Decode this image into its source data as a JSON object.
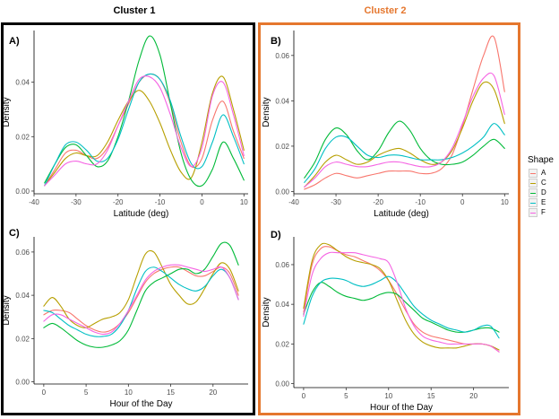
{
  "clusters": [
    {
      "title": "Cluster 1",
      "color": "#000000"
    },
    {
      "title": "Cluster 2",
      "color": "#e5772e"
    }
  ],
  "legend": {
    "title": "Shape",
    "items": [
      {
        "label": "A",
        "color": "#f8766d"
      },
      {
        "label": "C",
        "color": "#b79f00"
      },
      {
        "label": "D",
        "color": "#00ba38"
      },
      {
        "label": "E",
        "color": "#00bfc4"
      },
      {
        "label": "F",
        "color": "#f564e3"
      }
    ]
  },
  "chart_data": [
    {
      "panel": "A)",
      "type": "line",
      "xlabel": "Latitude (deg)",
      "ylabel": "Density",
      "xlim": [
        -40,
        11
      ],
      "ylim": [
        -0.001,
        0.059
      ],
      "xticks": [
        -40,
        -30,
        -20,
        -10,
        0,
        10
      ],
      "yticks": [
        0.0,
        0.02,
        0.04
      ],
      "ytick_labels": [
        "0.00",
        "0.02",
        "0.04"
      ],
      "x": [
        -37.5,
        -35,
        -32.5,
        -30,
        -27.5,
        -25,
        -22.5,
        -20,
        -17.5,
        -15,
        -12.5,
        -10,
        -7.5,
        -5,
        -2.5,
        0,
        2.5,
        5,
        7.5,
        10
      ],
      "series": [
        {
          "name": "A",
          "values": [
            0.002,
            0.008,
            0.014,
            0.015,
            0.013,
            0.012,
            0.016,
            0.024,
            0.032,
            0.04,
            0.043,
            0.041,
            0.032,
            0.018,
            0.009,
            0.012,
            0.026,
            0.033,
            0.022,
            0.012
          ]
        },
        {
          "name": "C",
          "values": [
            0.002,
            0.007,
            0.012,
            0.014,
            0.013,
            0.013,
            0.018,
            0.026,
            0.033,
            0.037,
            0.033,
            0.025,
            0.015,
            0.007,
            0.005,
            0.018,
            0.036,
            0.042,
            0.03,
            0.015
          ]
        },
        {
          "name": "D",
          "values": [
            0.003,
            0.01,
            0.016,
            0.017,
            0.013,
            0.009,
            0.011,
            0.02,
            0.033,
            0.048,
            0.057,
            0.05,
            0.032,
            0.014,
            0.004,
            0.002,
            0.008,
            0.018,
            0.012,
            0.004
          ]
        },
        {
          "name": "E",
          "values": [
            0.002,
            0.01,
            0.017,
            0.018,
            0.015,
            0.011,
            0.012,
            0.019,
            0.03,
            0.04,
            0.043,
            0.041,
            0.033,
            0.02,
            0.01,
            0.009,
            0.018,
            0.028,
            0.02,
            0.01
          ]
        },
        {
          "name": "F",
          "values": [
            0.002,
            0.006,
            0.01,
            0.011,
            0.01,
            0.01,
            0.015,
            0.024,
            0.033,
            0.041,
            0.042,
            0.038,
            0.028,
            0.016,
            0.009,
            0.016,
            0.035,
            0.04,
            0.028,
            0.013
          ]
        }
      ]
    },
    {
      "panel": "B)",
      "type": "line",
      "xlabel": "Latitude (deg)",
      "ylabel": "Density",
      "xlim": [
        -40,
        11
      ],
      "ylim": [
        -0.001,
        0.071
      ],
      "xticks": [
        -40,
        -30,
        -20,
        -10,
        0,
        10
      ],
      "yticks": [
        0.0,
        0.02,
        0.04,
        0.06
      ],
      "ytick_labels": [
        "0.00",
        "0.02",
        "0.04",
        "0.06"
      ],
      "x": [
        -37.5,
        -35,
        -32.5,
        -30,
        -27.5,
        -25,
        -22.5,
        -20,
        -17.5,
        -15,
        -12.5,
        -10,
        -7.5,
        -5,
        -2.5,
        0,
        2.5,
        5,
        7.5,
        10
      ],
      "series": [
        {
          "name": "A",
          "values": [
            0.001,
            0.003,
            0.006,
            0.008,
            0.007,
            0.006,
            0.007,
            0.008,
            0.009,
            0.009,
            0.009,
            0.008,
            0.008,
            0.01,
            0.016,
            0.029,
            0.045,
            0.06,
            0.068,
            0.044
          ]
        },
        {
          "name": "C",
          "values": [
            0.002,
            0.007,
            0.013,
            0.016,
            0.014,
            0.012,
            0.013,
            0.016,
            0.018,
            0.019,
            0.017,
            0.014,
            0.012,
            0.013,
            0.018,
            0.028,
            0.04,
            0.048,
            0.045,
            0.03
          ]
        },
        {
          "name": "D",
          "values": [
            0.006,
            0.013,
            0.023,
            0.028,
            0.025,
            0.018,
            0.014,
            0.018,
            0.026,
            0.031,
            0.027,
            0.019,
            0.014,
            0.012,
            0.012,
            0.013,
            0.016,
            0.02,
            0.023,
            0.019
          ]
        },
        {
          "name": "E",
          "values": [
            0.004,
            0.01,
            0.019,
            0.024,
            0.024,
            0.02,
            0.016,
            0.015,
            0.016,
            0.016,
            0.015,
            0.014,
            0.014,
            0.014,
            0.015,
            0.017,
            0.02,
            0.024,
            0.03,
            0.025
          ]
        },
        {
          "name": "F",
          "values": [
            0.002,
            0.006,
            0.011,
            0.013,
            0.012,
            0.011,
            0.011,
            0.012,
            0.013,
            0.013,
            0.012,
            0.011,
            0.011,
            0.013,
            0.019,
            0.03,
            0.042,
            0.05,
            0.051,
            0.034
          ]
        }
      ]
    },
    {
      "panel": "C)",
      "type": "line",
      "xlabel": "Hour of the Day",
      "ylabel": "Density",
      "xlim": [
        -1.15,
        24.15
      ],
      "ylim": [
        -0.001,
        0.067
      ],
      "xticks": [
        0,
        5,
        10,
        15,
        20
      ],
      "yticks": [
        0.0,
        0.02,
        0.04,
        0.06
      ],
      "ytick_labels": [
        "0.00",
        "0.02",
        "0.04",
        "0.06"
      ],
      "x": [
        0,
        1,
        2,
        3,
        4,
        5,
        6,
        7,
        8,
        9,
        10,
        11,
        12,
        13,
        14,
        15,
        16,
        17,
        18,
        19,
        20,
        21,
        22,
        23
      ],
      "series": [
        {
          "name": "A",
          "values": [
            0.031,
            0.033,
            0.033,
            0.032,
            0.029,
            0.026,
            0.024,
            0.023,
            0.024,
            0.027,
            0.032,
            0.039,
            0.046,
            0.05,
            0.052,
            0.053,
            0.053,
            0.051,
            0.049,
            0.049,
            0.051,
            0.053,
            0.05,
            0.04
          ]
        },
        {
          "name": "C",
          "values": [
            0.035,
            0.039,
            0.035,
            0.029,
            0.026,
            0.025,
            0.027,
            0.029,
            0.03,
            0.032,
            0.038,
            0.049,
            0.059,
            0.06,
            0.053,
            0.045,
            0.04,
            0.036,
            0.037,
            0.043,
            0.05,
            0.055,
            0.052,
            0.042
          ]
        },
        {
          "name": "D",
          "values": [
            0.025,
            0.027,
            0.025,
            0.022,
            0.019,
            0.017,
            0.016,
            0.016,
            0.017,
            0.019,
            0.024,
            0.033,
            0.042,
            0.046,
            0.048,
            0.05,
            0.052,
            0.052,
            0.05,
            0.052,
            0.058,
            0.064,
            0.063,
            0.054
          ]
        },
        {
          "name": "E",
          "values": [
            0.033,
            0.032,
            0.029,
            0.026,
            0.024,
            0.022,
            0.021,
            0.021,
            0.022,
            0.026,
            0.033,
            0.043,
            0.051,
            0.053,
            0.051,
            0.048,
            0.045,
            0.043,
            0.042,
            0.044,
            0.049,
            0.052,
            0.048,
            0.038
          ]
        },
        {
          "name": "F",
          "values": [
            0.028,
            0.031,
            0.031,
            0.029,
            0.027,
            0.025,
            0.023,
            0.022,
            0.023,
            0.027,
            0.033,
            0.04,
            0.047,
            0.051,
            0.053,
            0.054,
            0.054,
            0.053,
            0.052,
            0.051,
            0.052,
            0.053,
            0.048,
            0.038
          ]
        }
      ]
    },
    {
      "panel": "D)",
      "type": "line",
      "xlabel": "Hour of the Day",
      "ylabel": "Density",
      "xlim": [
        -1.15,
        24.15
      ],
      "ylim": [
        -0.002,
        0.074
      ],
      "xticks": [
        0,
        5,
        10,
        15,
        20
      ],
      "yticks": [
        0.0,
        0.02,
        0.04,
        0.06
      ],
      "ytick_labels": [
        "0.00",
        "0.02",
        "0.04",
        "0.06"
      ],
      "x": [
        0,
        1,
        2,
        3,
        4,
        5,
        6,
        7,
        8,
        9,
        10,
        11,
        12,
        13,
        14,
        15,
        16,
        17,
        18,
        19,
        20,
        21,
        22,
        23
      ],
      "series": [
        {
          "name": "A",
          "values": [
            0.036,
            0.06,
            0.068,
            0.069,
            0.067,
            0.065,
            0.064,
            0.062,
            0.06,
            0.057,
            0.052,
            0.045,
            0.037,
            0.03,
            0.026,
            0.024,
            0.023,
            0.022,
            0.021,
            0.02,
            0.02,
            0.02,
            0.019,
            0.016
          ]
        },
        {
          "name": "C",
          "values": [
            0.038,
            0.062,
            0.07,
            0.07,
            0.067,
            0.064,
            0.062,
            0.061,
            0.06,
            0.058,
            0.052,
            0.042,
            0.032,
            0.025,
            0.021,
            0.019,
            0.018,
            0.018,
            0.018,
            0.019,
            0.02,
            0.02,
            0.019,
            0.017
          ]
        },
        {
          "name": "D",
          "values": [
            0.035,
            0.046,
            0.051,
            0.049,
            0.046,
            0.044,
            0.043,
            0.042,
            0.043,
            0.045,
            0.046,
            0.045,
            0.041,
            0.037,
            0.033,
            0.031,
            0.029,
            0.027,
            0.026,
            0.026,
            0.027,
            0.028,
            0.028,
            0.026
          ]
        },
        {
          "name": "E",
          "values": [
            0.03,
            0.044,
            0.051,
            0.053,
            0.053,
            0.052,
            0.05,
            0.049,
            0.05,
            0.052,
            0.054,
            0.051,
            0.045,
            0.039,
            0.035,
            0.032,
            0.03,
            0.028,
            0.027,
            0.026,
            0.027,
            0.029,
            0.029,
            0.023
          ]
        },
        {
          "name": "F",
          "values": [
            0.034,
            0.055,
            0.063,
            0.066,
            0.066,
            0.066,
            0.066,
            0.065,
            0.064,
            0.063,
            0.061,
            0.051,
            0.038,
            0.029,
            0.024,
            0.022,
            0.021,
            0.02,
            0.02,
            0.02,
            0.02,
            0.02,
            0.019,
            0.016
          ]
        }
      ]
    }
  ]
}
